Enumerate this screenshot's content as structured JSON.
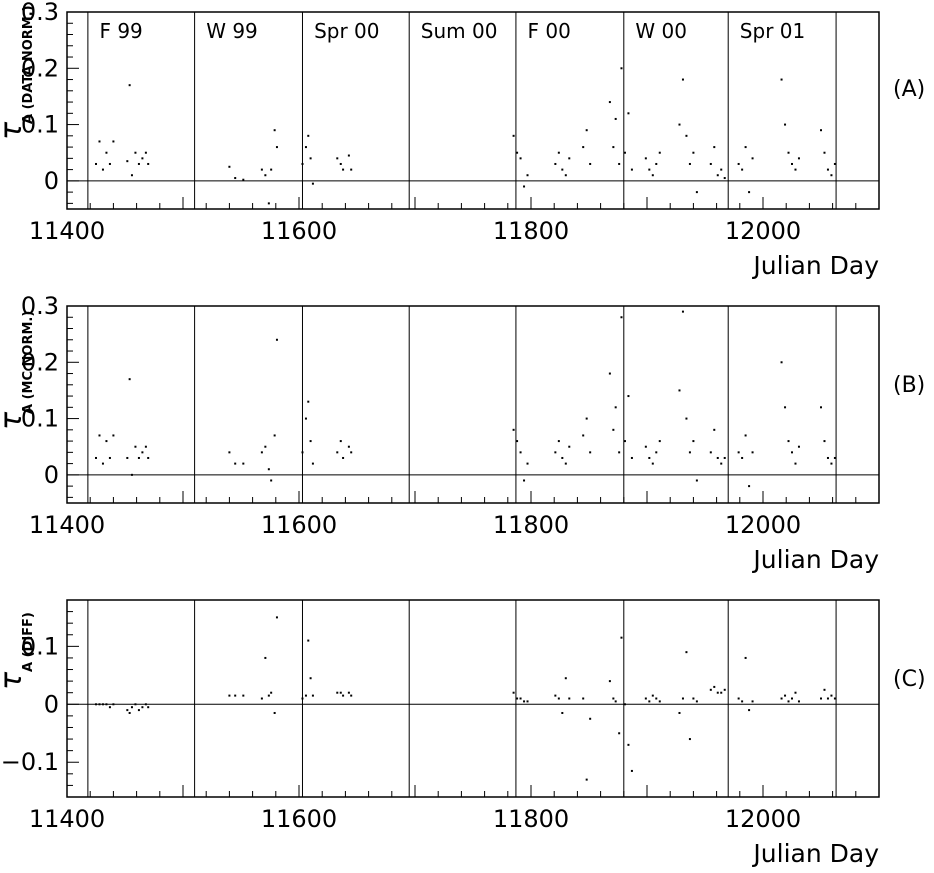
{
  "chart_data": [
    {
      "type": "scatter",
      "panel_tag": "(A)",
      "ylabel_symbol": "τ",
      "ylabel_subscript": "A (DATA NORM.)",
      "xlabel": "Julian Day",
      "xlim": [
        11400,
        12100
      ],
      "ylim": [
        -0.05,
        0.3
      ],
      "xticks": [
        11400,
        11600,
        11800,
        12000
      ],
      "xtick_labels": [
        "11400",
        "11600",
        "11800",
        "12000"
      ],
      "yticks": [
        0,
        0.1,
        0.2,
        0.3
      ],
      "ytick_labels": [
        "0",
        "0.1",
        "0.2",
        "0.3"
      ],
      "reference_line_y": 0,
      "season_boundaries": [
        11418,
        11510,
        11603,
        11695,
        11787,
        11880,
        11970,
        12063
      ],
      "season_labels": [
        {
          "text": "F 99",
          "x": 11428
        },
        {
          "text": "W 99",
          "x": 11520
        },
        {
          "text": "Spr 00",
          "x": 11613
        },
        {
          "text": "Sum 00",
          "x": 11705
        },
        {
          "text": "F 00",
          "x": 11797
        },
        {
          "text": "W 00",
          "x": 11890
        },
        {
          "text": "Spr 01",
          "x": 11980
        }
      ],
      "x": [
        11425,
        11428,
        11431,
        11434,
        11437,
        11440,
        11452,
        11454,
        11456,
        11459,
        11462,
        11465,
        11468,
        11470,
        11540,
        11545,
        11552,
        11568,
        11571,
        11574,
        11576,
        11579,
        11581,
        11603,
        11606,
        11608,
        11610,
        11612,
        11633,
        11636,
        11638,
        11643,
        11645,
        11785,
        11788,
        11791,
        11794,
        11797,
        11821,
        11824,
        11827,
        11830,
        11833,
        11845,
        11848,
        11851,
        11868,
        11871,
        11873,
        11876,
        11878,
        11881,
        11884,
        11887,
        11899,
        11902,
        11905,
        11908,
        11911,
        11928,
        11931,
        11934,
        11937,
        11940,
        11943,
        11955,
        11958,
        11961,
        11964,
        11967,
        11979,
        11982,
        11985,
        11988,
        11991,
        12016,
        12019,
        12022,
        12025,
        12028,
        12031,
        12050,
        12053,
        12056,
        12059,
        12062
      ],
      "y": [
        0.03,
        0.07,
        0.02,
        0.05,
        0.03,
        0.07,
        0.035,
        0.17,
        0.01,
        0.05,
        0.03,
        0.04,
        0.05,
        0.03,
        0.025,
        0.005,
        0.002,
        0.02,
        0.01,
        -0.04,
        0.02,
        0.09,
        0.06,
        0.03,
        0.06,
        0.08,
        0.04,
        -0.005,
        0.04,
        0.03,
        0.02,
        0.045,
        0.02,
        0.08,
        0.05,
        0.04,
        -0.01,
        0.01,
        0.03,
        0.05,
        0.02,
        0.01,
        0.04,
        0.06,
        0.09,
        0.03,
        0.14,
        0.06,
        0.11,
        0.03,
        0.2,
        0.05,
        0.12,
        0.02,
        0.04,
        0.02,
        0.01,
        0.03,
        0.05,
        0.1,
        0.18,
        0.08,
        0.03,
        0.05,
        -0.02,
        0.03,
        0.06,
        0.01,
        0.02,
        0.005,
        0.03,
        0.02,
        0.06,
        -0.02,
        0.04,
        0.18,
        0.1,
        0.05,
        0.03,
        0.02,
        0.04,
        0.09,
        0.05,
        0.02,
        0.01,
        0.03
      ]
    },
    {
      "type": "scatter",
      "panel_tag": "(B)",
      "ylabel_symbol": "τ",
      "ylabel_subscript": "A (MC NORM.)",
      "xlabel": "Julian Day",
      "xlim": [
        11400,
        12100
      ],
      "ylim": [
        -0.05,
        0.3
      ],
      "xticks": [
        11400,
        11600,
        11800,
        12000
      ],
      "xtick_labels": [
        "11400",
        "11600",
        "11800",
        "12000"
      ],
      "yticks": [
        0,
        0.1,
        0.2,
        0.3
      ],
      "ytick_labels": [
        "0",
        "0.1",
        "0.2",
        "0.3"
      ],
      "reference_line_y": 0,
      "season_boundaries": [
        11418,
        11510,
        11603,
        11695,
        11787,
        11880,
        11970,
        12063
      ],
      "x": [
        11425,
        11428,
        11431,
        11434,
        11437,
        11440,
        11452,
        11454,
        11456,
        11459,
        11462,
        11465,
        11468,
        11470,
        11540,
        11545,
        11552,
        11568,
        11571,
        11574,
        11576,
        11579,
        11581,
        11603,
        11606,
        11608,
        11610,
        11612,
        11633,
        11636,
        11638,
        11643,
        11645,
        11785,
        11788,
        11791,
        11794,
        11797,
        11821,
        11824,
        11827,
        11830,
        11833,
        11845,
        11848,
        11851,
        11868,
        11871,
        11873,
        11876,
        11878,
        11881,
        11884,
        11887,
        11899,
        11902,
        11905,
        11908,
        11911,
        11928,
        11931,
        11934,
        11937,
        11940,
        11943,
        11955,
        11958,
        11961,
        11964,
        11967,
        11979,
        11982,
        11985,
        11988,
        11991,
        12016,
        12019,
        12022,
        12025,
        12028,
        12031,
        12050,
        12053,
        12056,
        12059,
        12062
      ],
      "y": [
        0.03,
        0.07,
        0.02,
        0.06,
        0.03,
        0.07,
        0.03,
        0.17,
        0.0,
        0.05,
        0.03,
        0.04,
        0.05,
        0.03,
        0.04,
        0.02,
        0.02,
        0.04,
        0.05,
        0.01,
        -0.01,
        0.07,
        0.24,
        0.04,
        0.1,
        0.13,
        0.06,
        0.02,
        0.04,
        0.06,
        0.03,
        0.05,
        0.04,
        0.08,
        0.06,
        0.04,
        -0.01,
        0.02,
        0.04,
        0.06,
        0.03,
        0.02,
        0.05,
        0.07,
        0.1,
        0.04,
        0.18,
        0.08,
        0.12,
        0.04,
        0.28,
        0.06,
        0.14,
        0.03,
        0.05,
        0.03,
        0.02,
        0.04,
        0.06,
        0.15,
        0.29,
        0.1,
        0.04,
        0.06,
        -0.01,
        0.04,
        0.08,
        0.03,
        0.02,
        0.03,
        0.04,
        0.03,
        0.07,
        -0.02,
        0.04,
        0.2,
        0.12,
        0.06,
        0.04,
        0.02,
        0.05,
        0.12,
        0.06,
        0.03,
        0.02,
        0.03
      ]
    },
    {
      "type": "scatter",
      "panel_tag": "(C)",
      "ylabel_symbol": "τ",
      "ylabel_subscript": "A (DIFF)",
      "xlabel": "Julian Day",
      "xlim": [
        11400,
        12100
      ],
      "ylim": [
        -0.16,
        0.18
      ],
      "xticks": [
        11400,
        11600,
        11800,
        12000
      ],
      "xtick_labels": [
        "11400",
        "11600",
        "11800",
        "12000"
      ],
      "yticks": [
        -0.1,
        0,
        0.1
      ],
      "ytick_labels": [
        "−0.1",
        "0",
        "0.1"
      ],
      "reference_line_y": 0,
      "season_boundaries": [
        11418,
        11510,
        11603,
        11695,
        11787,
        11880,
        11970,
        12063
      ],
      "x": [
        11425,
        11428,
        11431,
        11434,
        11437,
        11440,
        11452,
        11454,
        11456,
        11459,
        11462,
        11465,
        11468,
        11470,
        11540,
        11545,
        11552,
        11568,
        11571,
        11574,
        11576,
        11579,
        11581,
        11603,
        11606,
        11608,
        11610,
        11612,
        11633,
        11636,
        11638,
        11643,
        11645,
        11785,
        11788,
        11791,
        11794,
        11797,
        11821,
        11824,
        11827,
        11830,
        11833,
        11845,
        11848,
        11851,
        11868,
        11871,
        11873,
        11876,
        11878,
        11881,
        11884,
        11887,
        11899,
        11902,
        11905,
        11908,
        11911,
        11928,
        11931,
        11934,
        11937,
        11940,
        11943,
        11955,
        11958,
        11961,
        11964,
        11967,
        11979,
        11982,
        11985,
        11988,
        11991,
        12016,
        12019,
        12022,
        12025,
        12028,
        12031,
        12050,
        12053,
        12056,
        12059,
        12062
      ],
      "y": [
        0.0,
        0.0,
        0.0,
        0.0,
        -0.005,
        0.0,
        -0.01,
        -0.015,
        -0.005,
        0.0,
        -0.01,
        -0.005,
        0.0,
        -0.005,
        0.015,
        0.015,
        0.015,
        0.01,
        0.08,
        0.015,
        0.02,
        -0.015,
        0.15,
        0.01,
        0.015,
        0.11,
        0.045,
        0.015,
        0.02,
        0.02,
        0.015,
        0.02,
        0.015,
        0.02,
        0.01,
        0.01,
        0.005,
        0.005,
        0.015,
        0.01,
        -0.015,
        0.045,
        0.01,
        0.01,
        -0.13,
        -0.025,
        0.04,
        0.01,
        0.005,
        -0.05,
        0.115,
        0.0,
        -0.07,
        -0.115,
        0.01,
        0.005,
        0.015,
        0.01,
        0.005,
        -0.015,
        0.01,
        0.09,
        -0.06,
        0.01,
        0.005,
        0.025,
        0.03,
        0.02,
        0.02,
        0.025,
        0.01,
        0.005,
        0.08,
        -0.01,
        0.005,
        0.01,
        0.015,
        0.005,
        0.01,
        0.02,
        0.005,
        0.01,
        0.025,
        0.01,
        0.015,
        0.01
      ]
    }
  ]
}
